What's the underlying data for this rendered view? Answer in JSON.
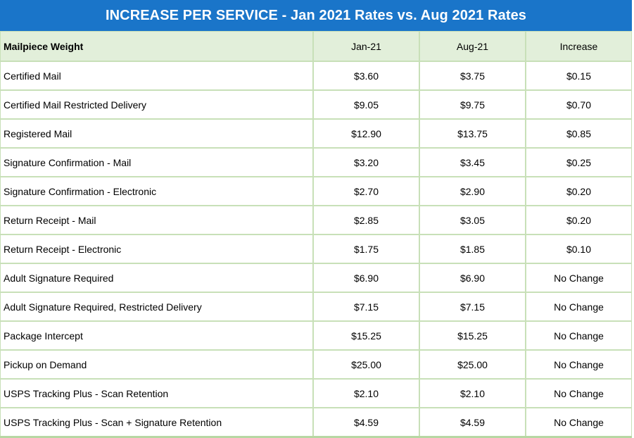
{
  "title": "INCREASE PER SERVICE - Jan 2021 Rates vs. Aug 2021 Rates",
  "header": {
    "col1": "Mailpiece Weight",
    "col2": "Jan-21",
    "col3": "Aug-21",
    "col4": "Increase"
  },
  "rows": [
    {
      "service": "Certified Mail",
      "jan": "$3.60",
      "aug": "$3.75",
      "increase": "$0.15"
    },
    {
      "service": "Certified Mail Restricted Delivery",
      "jan": "$9.05",
      "aug": "$9.75",
      "increase": "$0.70"
    },
    {
      "service": "Registered Mail",
      "jan": "$12.90",
      "aug": "$13.75",
      "increase": "$0.85"
    },
    {
      "service": "Signature Confirmation - Mail",
      "jan": "$3.20",
      "aug": "$3.45",
      "increase": "$0.25"
    },
    {
      "service": "Signature Confirmation - Electronic",
      "jan": "$2.70",
      "aug": "$2.90",
      "increase": "$0.20"
    },
    {
      "service": "Return Receipt - Mail",
      "jan": "$2.85",
      "aug": "$3.05",
      "increase": "$0.20"
    },
    {
      "service": "Return Receipt - Electronic",
      "jan": "$1.75",
      "aug": "$1.85",
      "increase": "$0.10"
    },
    {
      "service": "Adult Signature Required",
      "jan": "$6.90",
      "aug": "$6.90",
      "increase": "No Change"
    },
    {
      "service": "Adult Signature Required, Restricted Delivery",
      "jan": "$7.15",
      "aug": "$7.15",
      "increase": "No Change"
    },
    {
      "service": "Package Intercept",
      "jan": "$15.25",
      "aug": "$15.25",
      "increase": "No Change"
    },
    {
      "service": "Pickup on Demand",
      "jan": "$25.00",
      "aug": "$25.00",
      "increase": "No Change"
    },
    {
      "service": "USPS Tracking Plus - Scan Retention",
      "jan": "$2.10",
      "aug": "$2.10",
      "increase": "No Change"
    },
    {
      "service": "USPS Tracking Plus - Scan + Signature Retention",
      "jan": "$4.59",
      "aug": "$4.59",
      "increase": "No Change"
    }
  ]
}
